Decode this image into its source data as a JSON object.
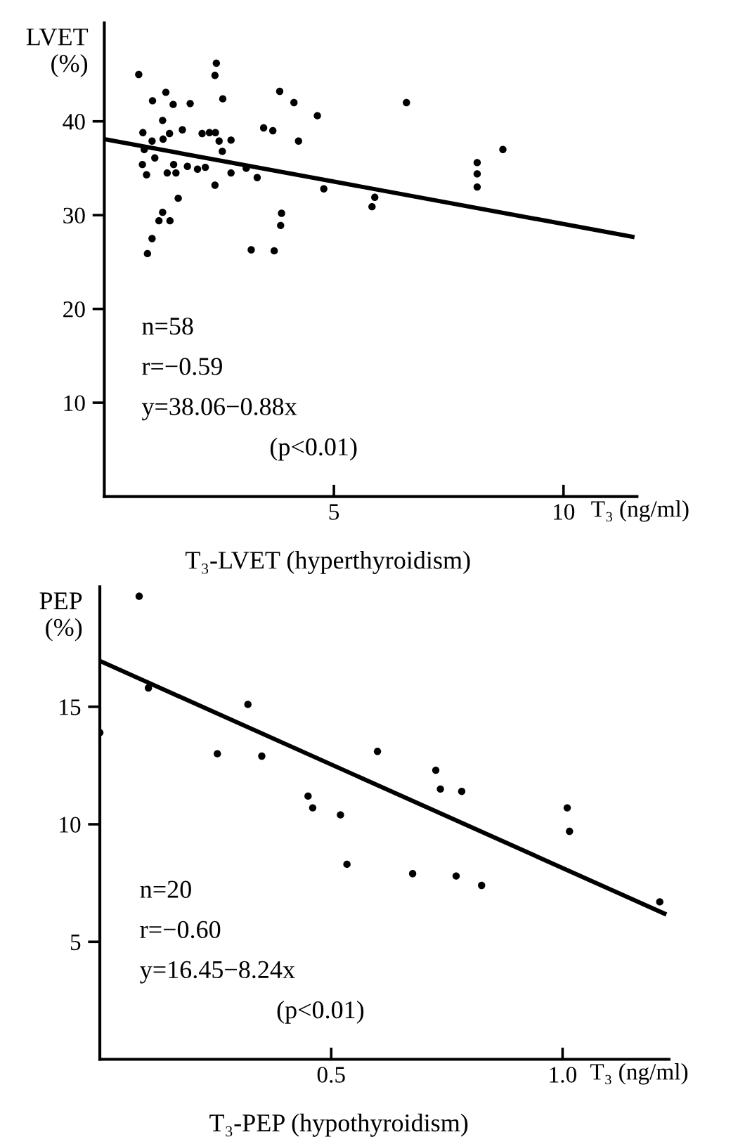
{
  "chart_data": [
    {
      "type": "scatter",
      "title": "T₃-LVET (hyperthyroidism)",
      "xlabel": "T₃ (ng/ml)",
      "ylabel": "LVET\n(%)",
      "xlim": [
        0,
        11.6
      ],
      "ylim": [
        0,
        50.5
      ],
      "xticks": [
        5,
        10
      ],
      "yticks": [
        10,
        20,
        30,
        40
      ],
      "grid": false,
      "legend": false,
      "marker": "circle",
      "annotations": [
        "n=58",
        "r=−0.59",
        "y=38.06−0.88x",
        "(p<0.01)"
      ],
      "series": [
        {
          "color": "#000000",
          "x": [
            0.75,
            2.44,
            2.41,
            1.05,
            1.34,
            1.5,
            1.87,
            2.58,
            3.82,
            4.13,
            4.64,
            6.58,
            1.27,
            0.84,
            1.7,
            1.42,
            1.28,
            1.04,
            2.13,
            2.29,
            2.42,
            2.5,
            2.76,
            2.57,
            3.47,
            3.67,
            4.23,
            0.87,
            1.1,
            0.83,
            0.92,
            1.37,
            1.51,
            1.56,
            1.81,
            2.03,
            2.2,
            2.76,
            3.09,
            3.33,
            2.41,
            1.61,
            4.78,
            5.89,
            5.83,
            8.12,
            8.12,
            8.12,
            8.68,
            1.27,
            1.19,
            1.43,
            3.86,
            3.84,
            1.04,
            0.94,
            3.2,
            3.7
          ],
          "values": [
            45.0,
            46.2,
            44.9,
            42.2,
            43.1,
            41.8,
            41.9,
            42.4,
            43.2,
            42.0,
            40.6,
            42.0,
            40.1,
            38.8,
            39.1,
            38.7,
            38.1,
            37.9,
            38.7,
            38.8,
            38.8,
            37.9,
            38.0,
            36.8,
            39.3,
            39.0,
            37.9,
            37.0,
            36.1,
            35.4,
            34.3,
            34.5,
            35.4,
            34.5,
            35.2,
            34.9,
            35.1,
            34.5,
            35.0,
            34.0,
            33.2,
            31.8,
            32.8,
            31.9,
            30.9,
            35.6,
            34.4,
            33.0,
            37.0,
            30.3,
            29.4,
            29.4,
            30.2,
            28.9,
            27.5,
            25.9,
            26.3,
            26.2
          ]
        },
        {
          "type": "line",
          "color": "#000000",
          "marker": "none",
          "line_style": "solid",
          "x": [
            0,
            11.5
          ],
          "values": [
            38.1,
            27.7
          ]
        }
      ]
    },
    {
      "type": "scatter",
      "title": "T₃-PEP (hypothyroidism)",
      "xlabel": "T₃ (ng/ml)",
      "ylabel": "PEP\n(%)",
      "xlim": [
        0,
        1.23
      ],
      "ylim": [
        0,
        20.1
      ],
      "xticks": [
        0.5,
        {
          "value": 1.0,
          "label": "1.0"
        }
      ],
      "yticks": [
        5,
        10,
        15
      ],
      "grid": false,
      "legend": false,
      "marker": "circle",
      "annotations": [
        "n=20",
        "r=−0.60",
        "y=16.45−8.24x",
        "(p<0.01)"
      ],
      "series": [
        {
          "color": "#000000",
          "x": [
            0.085,
            0.105,
            0.0,
            0.32,
            0.254,
            0.35,
            0.6,
            0.726,
            0.736,
            0.782,
            0.45,
            0.46,
            0.52,
            1.01,
            1.015,
            0.534,
            0.676,
            0.77,
            0.825,
            1.21
          ],
          "values": [
            19.7,
            15.8,
            13.9,
            15.1,
            13.0,
            12.9,
            13.1,
            12.3,
            11.5,
            11.4,
            11.2,
            10.7,
            10.4,
            10.7,
            9.7,
            8.3,
            7.9,
            7.8,
            7.4,
            6.7
          ]
        },
        {
          "type": "line",
          "color": "#000000",
          "marker": "none",
          "line_style": "solid",
          "x": [
            0,
            1.22
          ],
          "values": [
            16.95,
            6.2
          ]
        }
      ]
    }
  ]
}
